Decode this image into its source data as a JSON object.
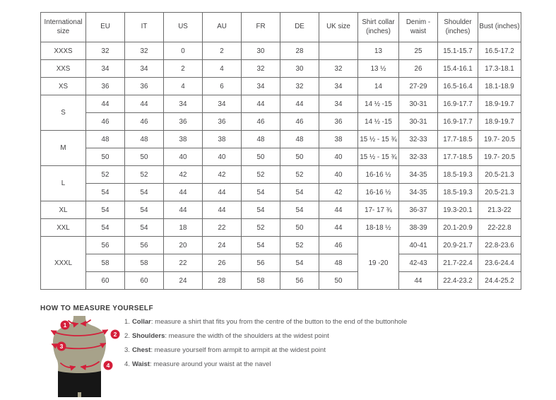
{
  "table": {
    "headers": [
      "International size",
      "EU",
      "IT",
      "US",
      "AU",
      "FR",
      "DE",
      "UK size",
      "Shirt collar (inches)",
      "Denim - waist",
      "Shoulder (inches)",
      "Bust (inches)"
    ],
    "rows": [
      [
        {
          "text": "XXXS"
        },
        "32",
        "32",
        "0",
        "2",
        "30",
        "28",
        "",
        "13",
        "25",
        "15.1-15.7",
        "16.5-17.2"
      ],
      [
        {
          "text": "XXS"
        },
        "34",
        "34",
        "2",
        "4",
        "32",
        "30",
        "32",
        "13 ½",
        "26",
        "15.4-16.1",
        "17.3-18.1"
      ],
      [
        {
          "text": "XS"
        },
        "36",
        "36",
        "4",
        "6",
        "34",
        "32",
        "34",
        "14",
        "27-29",
        "16.5-16.4",
        "18.1-18.9"
      ],
      [
        {
          "text": "S",
          "rowspan": 2
        },
        "44",
        "44",
        "34",
        "34",
        "44",
        "44",
        "34",
        "14 ½ -15",
        "30-31",
        "16.9-17.7",
        "18.9-19.7"
      ],
      [
        "46",
        "46",
        "36",
        "36",
        "46",
        "46",
        "36",
        "14 ½ -15",
        "30-31",
        "16.9-17.7",
        "18.9-19.7"
      ],
      [
        {
          "text": "M",
          "rowspan": 2
        },
        "48",
        "48",
        "38",
        "38",
        "48",
        "48",
        "38",
        "15 ½ - 15 ¾",
        "32-33",
        "17.7-18.5",
        "19.7- 20.5"
      ],
      [
        "50",
        "50",
        "40",
        "40",
        "50",
        "50",
        "40",
        "15 ½ - 15 ¾",
        "32-33",
        "17.7-18.5",
        "19.7- 20.5"
      ],
      [
        {
          "text": "L",
          "rowspan": 2
        },
        "52",
        "52",
        "42",
        "42",
        "52",
        "52",
        "40",
        "16-16 ½",
        "34-35",
        "18.5-19.3",
        "20.5-21.3"
      ],
      [
        "54",
        "54",
        "44",
        "44",
        "54",
        "54",
        "42",
        "16-16 ½",
        "34-35",
        "18.5-19.3",
        "20.5-21.3"
      ],
      [
        {
          "text": "XL"
        },
        "54",
        "54",
        "44",
        "44",
        "54",
        "54",
        "44",
        "17- 17 ¾",
        "36-37",
        "19.3-20.1",
        "21.3-22"
      ],
      [
        {
          "text": "XXL"
        },
        "54",
        "54",
        "18",
        "22",
        "52",
        "50",
        "44",
        "18-18 ½",
        "38-39",
        "20.1-20.9",
        "22-22.8"
      ],
      [
        {
          "text": "XXXL",
          "rowspan": 3
        },
        "56",
        "56",
        "20",
        "24",
        "54",
        "52",
        "46",
        {
          "text": "19 -20",
          "rowspan": 3
        },
        "40-41",
        "20.9-21.7",
        "22.8-23.6"
      ],
      [
        "58",
        "58",
        "22",
        "26",
        "56",
        "54",
        "48",
        "42-43",
        "21.7-22.4",
        "23.6-24.4"
      ],
      [
        "60",
        "60",
        "24",
        "28",
        "58",
        "56",
        "50",
        "44",
        "22.4-23.2",
        "24.4-25.2"
      ]
    ]
  },
  "measure": {
    "heading": "HOW TO MEASURE YOURSELF",
    "steps": [
      {
        "num": "1.",
        "term": "Collar",
        "text": ": measure a shirt that fits you from the centre of the button to the end of the buttonhole"
      },
      {
        "num": "2.",
        "term": "Shoulders",
        "text": ": measure the width of the shoulders at the widest point"
      },
      {
        "num": "3.",
        "term": "Chest",
        "text": ": measure yourself from armpit to armpit at the widest point"
      },
      {
        "num": "4.",
        "term": "Waist",
        "text": ": measure around your waist at the navel"
      }
    ],
    "diagram_labels": [
      "1",
      "2",
      "3",
      "4"
    ],
    "colors": {
      "accent_red": "#d41f3a",
      "torso": "#a7a28a",
      "shorts": "#161616"
    }
  }
}
